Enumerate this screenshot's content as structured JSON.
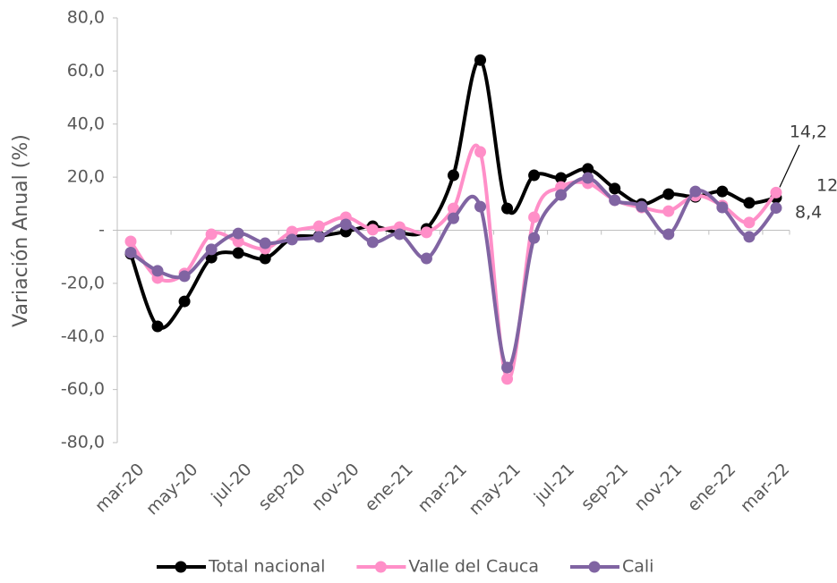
{
  "chart_data": {
    "type": "line",
    "y_axis_label": "Variación Anual (%)",
    "categories": [
      "mar-20",
      null,
      "may-20",
      null,
      "jul-20",
      null,
      "sep-20",
      null,
      "nov-20",
      null,
      "ene-21",
      null,
      "mar-21",
      null,
      "may-21",
      null,
      "jul-21",
      null,
      "sep-21",
      null,
      "nov-21",
      null,
      "ene-22",
      null,
      "mar-22"
    ],
    "ylim": [
      -80,
      80
    ],
    "yticks": [
      {
        "value": -80,
        "label": "-80,0"
      },
      {
        "value": -60,
        "label": "-60,0"
      },
      {
        "value": -40,
        "label": "-40,0"
      },
      {
        "value": -20,
        "label": "-20,0"
      },
      {
        "value": 0,
        "label": "-"
      },
      {
        "value": 20,
        "label": "20,0"
      },
      {
        "value": 40,
        "label": "40,0"
      },
      {
        "value": 60,
        "label": "60,0"
      },
      {
        "value": 80,
        "label": "80,0"
      }
    ],
    "legend_position": "bottom",
    "series": [
      {
        "name": "Total nacional",
        "color": "#000000",
        "values": [
          -8.9,
          -36.2,
          -26.8,
          -10.3,
          -8.6,
          -10.6,
          -2.9,
          -2.2,
          -0.5,
          1.5,
          -1.0,
          0.5,
          20.7,
          64.1,
          8.2,
          20.7,
          19.7,
          23.1,
          15.7,
          9.9,
          13.6,
          12.6,
          14.6,
          10.3,
          12.3
        ],
        "value_labels": [
          null,
          null,
          null,
          null,
          null,
          null,
          null,
          null,
          null,
          null,
          null,
          null,
          null,
          null,
          null,
          null,
          null,
          null,
          null,
          null,
          null,
          null,
          null,
          null,
          "12,3"
        ]
      },
      {
        "name": "Valle del Cauca",
        "color": "#ff8fc8",
        "values": [
          -4.2,
          -18.0,
          -16.3,
          -1.5,
          -4.2,
          -6.9,
          -0.5,
          1.5,
          4.9,
          0.2,
          1.2,
          -0.8,
          8.2,
          29.5,
          -56.0,
          4.9,
          16.3,
          17.7,
          11.3,
          8.6,
          7.2,
          13.0,
          9.3,
          2.9,
          14.2
        ],
        "value_labels": [
          null,
          null,
          null,
          null,
          null,
          null,
          null,
          null,
          null,
          null,
          null,
          null,
          null,
          null,
          null,
          null,
          null,
          null,
          null,
          null,
          null,
          null,
          null,
          null,
          "14,2"
        ]
      },
      {
        "name": "Cali",
        "color": "#8064a2",
        "values": [
          -8.4,
          -15.3,
          -17.3,
          -7.2,
          -1.2,
          -4.9,
          -3.5,
          -2.5,
          2.2,
          -4.5,
          -1.5,
          -10.6,
          4.5,
          8.9,
          -51.7,
          -2.9,
          13.3,
          19.7,
          11.3,
          8.9,
          -1.5,
          14.6,
          8.6,
          -2.5,
          8.4
        ],
        "value_labels": [
          null,
          null,
          null,
          null,
          null,
          null,
          null,
          null,
          null,
          null,
          null,
          null,
          null,
          null,
          null,
          null,
          null,
          null,
          null,
          null,
          null,
          null,
          null,
          null,
          "8,4"
        ]
      }
    ]
  }
}
